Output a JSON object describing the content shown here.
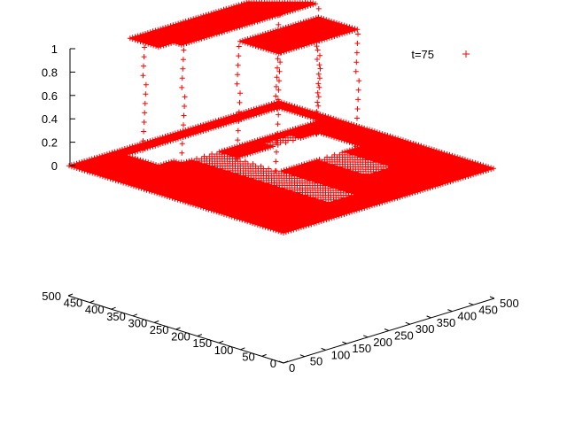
{
  "chart_data": {
    "type": "scatter",
    "plot_style": "3d-surface-points",
    "series": [
      {
        "name": "t=75",
        "color": "#ff0000",
        "marker": "+",
        "description_levels": [
          0,
          1
        ]
      }
    ],
    "axes": {
      "x": {
        "ticks": [
          "0",
          "50",
          "100",
          "150",
          "200",
          "250",
          "300",
          "350",
          "400",
          "450",
          "500"
        ],
        "range": [
          0,
          500
        ]
      },
      "y": {
        "ticks": [
          "0",
          "50",
          "100",
          "150",
          "200",
          "250",
          "300",
          "350",
          "400",
          "450",
          "500"
        ],
        "range": [
          0,
          500
        ]
      },
      "z": {
        "ticks": [
          "0",
          "0.2",
          "0.4",
          "0.6",
          "0.8",
          "1"
        ],
        "range": [
          0,
          1
        ]
      }
    },
    "grid": false,
    "legend_position": "top-right"
  }
}
